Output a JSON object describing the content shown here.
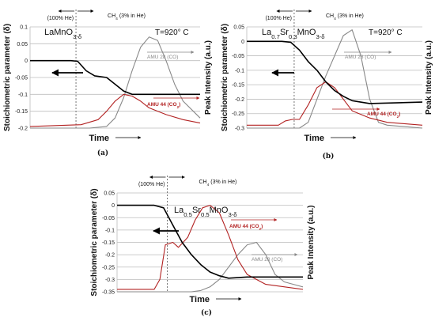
{
  "chart_data": [
    {
      "type": "line",
      "id": "a",
      "caption": "(a)",
      "title": "LaMnO",
      "title_sub": "3-δ",
      "temperature_label": "T=920° C",
      "ylabel": "Stoichiometric parameter (δ)",
      "ylabel_right": "Peak Intensity (a.u.)",
      "xlabel": "Time",
      "ylim": [
        -0.2,
        0.1
      ],
      "yticks": [
        0.1,
        0.05,
        0,
        -0.05,
        -0.1,
        -0.15,
        -0.2
      ],
      "ytick_labels": [
        "0.1",
        "0.05",
        "0",
        "-0.05",
        "-0.1",
        "-0.15",
        "-0.2"
      ],
      "switch_x": 0.27,
      "phase_left": "(100% He)",
      "phase_right": "CH",
      "phase_right_sub": "4",
      "phase_right_tail": " (3% in He)",
      "series": [
        {
          "name": "",
          "role": "delta",
          "color": "#000000",
          "x": [
            0,
            0.24,
            0.28,
            0.33,
            0.38,
            0.45,
            0.5,
            0.55,
            0.6,
            0.7,
            1.0
          ],
          "y": [
            0,
            0,
            -0.002,
            -0.03,
            -0.045,
            -0.05,
            -0.07,
            -0.09,
            -0.1,
            -0.1,
            -0.1
          ]
        },
        {
          "name": "AMU 44 (CO2)",
          "role": "co2",
          "color": "#b22222",
          "x": [
            0,
            0.3,
            0.4,
            0.45,
            0.5,
            0.55,
            0.6,
            0.65,
            0.7,
            0.8,
            0.9,
            1.0
          ],
          "y": [
            -0.195,
            -0.19,
            -0.175,
            -0.15,
            -0.12,
            -0.1,
            -0.105,
            -0.12,
            -0.14,
            -0.16,
            -0.175,
            -0.185
          ]
        },
        {
          "name": "AMU 28 (CO)",
          "role": "co",
          "color": "#888888",
          "x": [
            0,
            0.35,
            0.45,
            0.5,
            0.55,
            0.6,
            0.65,
            0.7,
            0.75,
            0.8,
            0.85,
            0.9,
            1.0
          ],
          "y": [
            -0.2,
            -0.2,
            -0.195,
            -0.17,
            -0.11,
            -0.03,
            0.04,
            0.07,
            0.06,
            0.0,
            -0.07,
            -0.12,
            -0.17
          ]
        }
      ],
      "labels": {
        "co2": "AMU 44 (CO",
        "co2_sub": "2",
        "co2_tail": ")",
        "co": "AMU 28 (CO)"
      }
    },
    {
      "type": "line",
      "id": "b",
      "caption": "(b)",
      "title": "La",
      "title_parts": [
        [
          "La",
          ""
        ],
        [
          "0.7",
          "sub"
        ],
        [
          "Sr",
          ""
        ],
        [
          "0.3",
          "sub"
        ],
        [
          "MnO",
          ""
        ],
        [
          "3-δ",
          "sub"
        ]
      ],
      "temperature_label": "T=920° C",
      "ylabel": "Stoichiometric parameter (δ)",
      "ylabel_right": "Peak Intensity (a.u.)",
      "xlabel": "Time",
      "ylim": [
        -0.3,
        0.05
      ],
      "yticks": [
        0.05,
        0,
        -0.05,
        -0.1,
        -0.15,
        -0.2,
        -0.25,
        -0.3
      ],
      "ytick_labels": [
        "0.05",
        "0",
        "-0.05",
        "-0.1",
        "-0.15",
        "-0.2",
        "-0.25",
        "-0.3"
      ],
      "switch_x": 0.27,
      "phase_left": "(100% He)",
      "phase_right": "CH",
      "phase_right_sub": "4",
      "phase_right_tail": " (3% in He)",
      "series": [
        {
          "name": "",
          "role": "delta",
          "color": "#000000",
          "x": [
            0,
            0.2,
            0.25,
            0.3,
            0.35,
            0.4,
            0.45,
            0.5,
            0.55,
            0.6,
            0.7,
            1.0
          ],
          "y": [
            0,
            0,
            -0.003,
            -0.03,
            -0.07,
            -0.1,
            -0.14,
            -0.17,
            -0.19,
            -0.205,
            -0.215,
            -0.21
          ]
        },
        {
          "name": "AMU 44 (CO2)",
          "role": "co2",
          "color": "#b22222",
          "x": [
            0,
            0.18,
            0.22,
            0.26,
            0.3,
            0.35,
            0.4,
            0.45,
            0.5,
            0.55,
            0.6,
            0.7,
            0.8,
            1.0
          ],
          "y": [
            -0.29,
            -0.29,
            -0.275,
            -0.27,
            -0.27,
            -0.22,
            -0.16,
            -0.14,
            -0.16,
            -0.2,
            -0.24,
            -0.265,
            -0.28,
            -0.29
          ]
        },
        {
          "name": "AMU 28 (CO)",
          "role": "co",
          "color": "#888888",
          "x": [
            0,
            0.3,
            0.35,
            0.4,
            0.45,
            0.5,
            0.55,
            0.6,
            0.65,
            0.7,
            0.75,
            0.8,
            1.0
          ],
          "y": [
            -0.3,
            -0.3,
            -0.28,
            -0.2,
            -0.12,
            -0.05,
            0.02,
            0.04,
            -0.05,
            -0.2,
            -0.28,
            -0.29,
            -0.3
          ]
        }
      ],
      "labels": {
        "co2": "AMU 44 (CO",
        "co2_sub": "2",
        "co2_tail": ")",
        "co": "AMU 28 (CO)"
      }
    },
    {
      "type": "line",
      "id": "c",
      "caption": "(c)",
      "title_parts": [
        [
          "La",
          ""
        ],
        [
          "0.5",
          "sub"
        ],
        [
          "Sr",
          ""
        ],
        [
          "0.5",
          "sub"
        ],
        [
          "MnO",
          ""
        ],
        [
          "3-δ",
          "sub"
        ]
      ],
      "temperature_label": "",
      "ylabel": "Stoichiometric parameter (δ)",
      "ylabel_right": "Peak Intensity (a.u.)",
      "xlabel": "Time",
      "ylim": [
        -0.35,
        0.05
      ],
      "yticks": [
        0.05,
        0,
        -0.05,
        -0.1,
        -0.15,
        -0.2,
        -0.25,
        -0.3,
        -0.35
      ],
      "ytick_labels": [
        "0.05",
        "0",
        "-0.05",
        "-0.1",
        "-0.15",
        "-0.2",
        "-0.25",
        "-0.3",
        "-0.35"
      ],
      "switch_x": 0.27,
      "phase_left": "(100% He)",
      "phase_right": "CH",
      "phase_right_sub": "4",
      "phase_right_tail": " (3% in He)",
      "series": [
        {
          "name": "",
          "role": "delta",
          "color": "#000000",
          "x": [
            0,
            0.2,
            0.25,
            0.3,
            0.35,
            0.4,
            0.45,
            0.5,
            0.55,
            0.6,
            0.7,
            1.0
          ],
          "y": [
            0,
            0,
            -0.01,
            -0.08,
            -0.15,
            -0.2,
            -0.24,
            -0.27,
            -0.285,
            -0.295,
            -0.29,
            -0.29
          ]
        },
        {
          "name": "AMU 44 (CO2)",
          "role": "co2",
          "color": "#b22222",
          "x": [
            0,
            0.2,
            0.23,
            0.26,
            0.3,
            0.33,
            0.38,
            0.42,
            0.46,
            0.5,
            0.55,
            0.6,
            0.65,
            0.7,
            0.8,
            1.0
          ],
          "y": [
            -0.34,
            -0.34,
            -0.3,
            -0.16,
            -0.15,
            -0.17,
            -0.13,
            -0.06,
            -0.01,
            0.0,
            -0.03,
            -0.12,
            -0.22,
            -0.28,
            -0.32,
            -0.34
          ]
        },
        {
          "name": "AMU 28 (CO)",
          "role": "co",
          "color": "#888888",
          "x": [
            0,
            0.4,
            0.45,
            0.5,
            0.55,
            0.6,
            0.65,
            0.7,
            0.75,
            0.8,
            0.85,
            0.9,
            1.0
          ],
          "y": [
            -0.35,
            -0.35,
            -0.345,
            -0.33,
            -0.3,
            -0.25,
            -0.2,
            -0.16,
            -0.15,
            -0.2,
            -0.28,
            -0.31,
            -0.33
          ]
        }
      ],
      "labels": {
        "co2": "AMU 44 (CO",
        "co2_sub": "2",
        "co2_tail": ")",
        "co": "AMU 28 (CO)"
      }
    }
  ]
}
